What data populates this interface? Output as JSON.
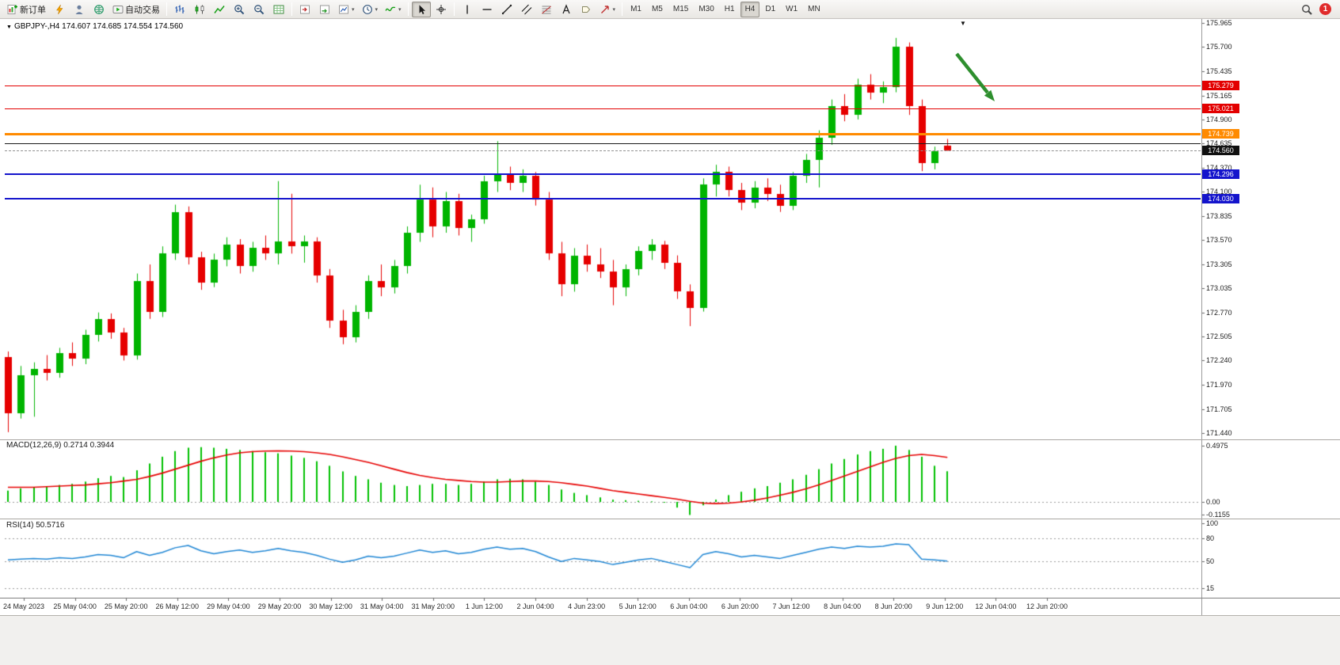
{
  "header": {
    "collapse_glyph": "▼",
    "title": "GBPJPY-,H4 174.607 174.685 174.554 174.560",
    "shift_marker": "▼"
  },
  "toolbar": {
    "items": [
      {
        "name": "new-order-button",
        "icon": "new-order-icon",
        "label": "新订单"
      },
      {
        "name": "market-watch-button",
        "icon": "lightning-icon"
      },
      {
        "name": "accounts-button",
        "icon": "person-icon"
      },
      {
        "name": "web-community-button",
        "icon": "globe-icon"
      },
      {
        "name": "autotrading-button",
        "icon": "autotrading-icon",
        "label": "自动交易"
      },
      {
        "sep": true
      },
      {
        "name": "bar-chart-mode-button",
        "icon": "ohlc-bars-icon"
      },
      {
        "name": "candle-chart-mode-button",
        "icon": "candles-icon"
      },
      {
        "name": "line-chart-mode-button",
        "icon": "line-chart-icon"
      },
      {
        "name": "zoom-in-button",
        "icon": "zoom-in-icon"
      },
      {
        "name": "zoom-out-button",
        "icon": "zoom-out-icon"
      },
      {
        "name": "tile-windows-button",
        "icon": "grid-icon"
      },
      {
        "sep": true
      },
      {
        "name": "chart-shift-button",
        "icon": "shift-icon"
      },
      {
        "name": "auto-scroll-button",
        "icon": "autoscroll-icon"
      },
      {
        "name": "new-chart-button",
        "icon": "new-chart-icon",
        "dropdown": true
      },
      {
        "name": "periods-button",
        "icon": "clock-icon",
        "dropdown": true
      },
      {
        "name": "indicators-button",
        "icon": "indicator-icon",
        "dropdown": true
      },
      {
        "sep": true
      },
      {
        "name": "cursor-button",
        "icon": "cursor-icon",
        "active": true
      },
      {
        "name": "crosshair-button",
        "icon": "crosshair-icon"
      },
      {
        "sep": true
      },
      {
        "name": "vertical-line-button",
        "icon": "vline-icon"
      },
      {
        "name": "horizontal-line-button",
        "icon": "hline-icon"
      },
      {
        "name": "trendline-button",
        "icon": "trendline-icon"
      },
      {
        "name": "channel-button",
        "icon": "channel-icon"
      },
      {
        "name": "fibonacci-button",
        "icon": "fibonacci-icon"
      },
      {
        "name": "text-button",
        "icon": "text-icon"
      },
      {
        "name": "label-button",
        "icon": "label-icon"
      },
      {
        "name": "shapes-button",
        "icon": "shapes-icon",
        "dropdown": true
      },
      {
        "sep": true
      }
    ],
    "timeframes": [
      "M1",
      "M5",
      "M15",
      "M30",
      "H1",
      "H4",
      "D1",
      "W1",
      "MN"
    ],
    "active_timeframe": "H4",
    "notification_count": "1"
  },
  "colors": {
    "bull": "#00b400",
    "bear": "#e60000",
    "macd_histogram": "#00c000",
    "macd_signal": "#e60000",
    "rsi_line": "#1f86d4",
    "arrow_green": "#2e8f2e",
    "badge_red": "#e02b2b"
  },
  "chart_data": {
    "type": "candlestick",
    "symbol": "GBPJPY-",
    "timeframe": "H4",
    "price_axis_ticks": [
      "175.965",
      "175.700",
      "175.435",
      "175.165",
      "174.900",
      "174.635",
      "174.370",
      "174.100",
      "173.835",
      "173.570",
      "173.305",
      "173.035",
      "172.770",
      "172.505",
      "172.240",
      "171.970",
      "171.705",
      "171.440"
    ],
    "x_labels": [
      "24 May 2023",
      "25 May 04:00",
      "25 May 20:00",
      "26 May 12:00",
      "29 May 04:00",
      "29 May 20:00",
      "30 May 12:00",
      "31 May 04:00",
      "31 May 20:00",
      "1 Jun 12:00",
      "2 Jun 04:00",
      "4 Jun 23:00",
      "5 Jun 12:00",
      "6 Jun 04:00",
      "6 Jun 20:00",
      "7 Jun 12:00",
      "8 Jun 04:00",
      "8 Jun 20:00",
      "9 Jun 12:00",
      "12 Jun 04:00",
      "12 Jun 20:00"
    ],
    "last_price": "174.560",
    "hlines": [
      {
        "price": 175.279,
        "color": "#e30000",
        "width": 1,
        "tag": "175.279"
      },
      {
        "price": 175.021,
        "color": "#e30000",
        "width": 1,
        "tag": "175.021"
      },
      {
        "price": 174.739,
        "color": "#ff8a00",
        "width": 3,
        "tag": "174.739"
      },
      {
        "price": 174.635,
        "color": "#1a1a1a",
        "width": 1,
        "tag": null
      },
      {
        "price": 174.56,
        "color": "#909090",
        "width": 1,
        "dashed": true,
        "tag": "174.560",
        "tag_bg": "#111111"
      },
      {
        "price": 174.296,
        "color": "#1414cc",
        "width": 2,
        "tag": "174.296"
      },
      {
        "price": 174.03,
        "color": "#1414cc",
        "width": 2,
        "tag": "174.030"
      }
    ],
    "candles_ohlc": [
      [
        172.28,
        172.34,
        171.45,
        171.66
      ],
      [
        171.66,
        172.18,
        171.6,
        172.08
      ],
      [
        172.08,
        172.22,
        171.62,
        172.15
      ],
      [
        172.15,
        172.3,
        172.02,
        172.1
      ],
      [
        172.1,
        172.38,
        172.05,
        172.32
      ],
      [
        172.32,
        172.44,
        172.18,
        172.26
      ],
      [
        172.26,
        172.58,
        172.2,
        172.52
      ],
      [
        172.52,
        172.77,
        172.45,
        172.7
      ],
      [
        172.7,
        172.76,
        172.48,
        172.55
      ],
      [
        172.55,
        172.6,
        172.24,
        172.3
      ],
      [
        172.3,
        173.2,
        172.25,
        173.12
      ],
      [
        173.12,
        173.3,
        172.7,
        172.78
      ],
      [
        172.78,
        173.5,
        172.72,
        173.42
      ],
      [
        173.42,
        173.96,
        173.35,
        173.88
      ],
      [
        173.88,
        173.94,
        173.3,
        173.38
      ],
      [
        173.38,
        173.44,
        173.02,
        173.1
      ],
      [
        173.1,
        173.42,
        173.05,
        173.35
      ],
      [
        173.35,
        173.6,
        173.28,
        173.52
      ],
      [
        173.52,
        173.58,
        173.2,
        173.28
      ],
      [
        173.28,
        173.55,
        173.22,
        173.48
      ],
      [
        173.48,
        173.62,
        173.35,
        173.42
      ],
      [
        173.42,
        174.22,
        173.3,
        173.55
      ],
      [
        173.55,
        174.08,
        173.42,
        173.5
      ],
      [
        173.5,
        173.62,
        173.32,
        173.55
      ],
      [
        173.55,
        173.6,
        173.1,
        173.18
      ],
      [
        173.18,
        173.25,
        172.6,
        172.68
      ],
      [
        172.68,
        172.8,
        172.42,
        172.5
      ],
      [
        172.5,
        172.85,
        172.44,
        172.78
      ],
      [
        172.78,
        173.18,
        172.7,
        173.12
      ],
      [
        173.12,
        173.3,
        172.95,
        173.05
      ],
      [
        173.05,
        173.35,
        172.98,
        173.28
      ],
      [
        173.28,
        173.72,
        173.2,
        173.65
      ],
      [
        173.65,
        174.18,
        173.55,
        174.02
      ],
      [
        174.02,
        174.15,
        173.6,
        173.72
      ],
      [
        173.72,
        174.1,
        173.65,
        174.0
      ],
      [
        174.0,
        174.08,
        173.62,
        173.7
      ],
      [
        173.7,
        173.85,
        173.55,
        173.8
      ],
      [
        173.8,
        174.28,
        173.75,
        174.22
      ],
      [
        174.22,
        174.66,
        174.1,
        174.3
      ],
      [
        174.3,
        174.38,
        174.12,
        174.2
      ],
      [
        174.2,
        174.35,
        174.1,
        174.28
      ],
      [
        174.28,
        174.32,
        173.95,
        174.02
      ],
      [
        174.02,
        174.1,
        173.35,
        173.42
      ],
      [
        173.42,
        173.55,
        172.95,
        173.08
      ],
      [
        173.08,
        173.48,
        173.0,
        173.4
      ],
      [
        173.4,
        173.52,
        173.22,
        173.3
      ],
      [
        173.3,
        173.48,
        173.15,
        173.22
      ],
      [
        173.22,
        173.35,
        172.85,
        173.05
      ],
      [
        173.05,
        173.3,
        172.95,
        173.25
      ],
      [
        173.25,
        173.5,
        173.18,
        173.45
      ],
      [
        173.45,
        173.58,
        173.35,
        173.52
      ],
      [
        173.52,
        173.56,
        173.25,
        173.32
      ],
      [
        173.32,
        173.4,
        172.92,
        173.0
      ],
      [
        173.0,
        173.08,
        172.62,
        172.82
      ],
      [
        172.82,
        174.25,
        172.78,
        174.18
      ],
      [
        174.18,
        174.4,
        174.05,
        174.32
      ],
      [
        174.32,
        174.38,
        174.05,
        174.12
      ],
      [
        174.12,
        174.2,
        173.9,
        173.98
      ],
      [
        173.98,
        174.22,
        173.92,
        174.15
      ],
      [
        174.15,
        174.25,
        174.0,
        174.08
      ],
      [
        174.08,
        174.18,
        173.88,
        173.95
      ],
      [
        173.95,
        174.32,
        173.9,
        174.28
      ],
      [
        174.28,
        174.52,
        174.2,
        174.45
      ],
      [
        174.45,
        174.78,
        174.15,
        174.7
      ],
      [
        174.7,
        175.12,
        174.62,
        175.05
      ],
      [
        175.05,
        175.18,
        174.88,
        174.95
      ],
      [
        174.95,
        175.35,
        174.9,
        175.28
      ],
      [
        175.28,
        175.4,
        175.12,
        175.2
      ],
      [
        175.2,
        175.32,
        175.08,
        175.26
      ],
      [
        175.26,
        175.8,
        175.2,
        175.7
      ],
      [
        175.7,
        175.75,
        174.95,
        175.05
      ],
      [
        175.05,
        175.12,
        174.33,
        174.42
      ],
      [
        174.42,
        174.6,
        174.35,
        174.55
      ],
      [
        174.607,
        174.685,
        174.554,
        174.56
      ]
    ],
    "macd": {
      "title": "MACD(12,26,9) 0.2714 0.3944",
      "axis": [
        "0.4975",
        "0.00",
        "-0.1155"
      ],
      "histogram": [
        0.1,
        0.12,
        0.13,
        0.14,
        0.15,
        0.16,
        0.18,
        0.21,
        0.23,
        0.22,
        0.28,
        0.34,
        0.4,
        0.45,
        0.48,
        0.485,
        0.48,
        0.47,
        0.46,
        0.45,
        0.44,
        0.43,
        0.41,
        0.39,
        0.36,
        0.32,
        0.27,
        0.23,
        0.2,
        0.17,
        0.15,
        0.14,
        0.15,
        0.16,
        0.16,
        0.15,
        0.16,
        0.18,
        0.2,
        0.205,
        0.2,
        0.18,
        0.15,
        0.11,
        0.08,
        0.06,
        0.04,
        0.02,
        0.015,
        0.01,
        0.005,
        0.0,
        -0.05,
        -0.1155,
        -0.03,
        0.02,
        0.06,
        0.09,
        0.12,
        0.14,
        0.17,
        0.2,
        0.24,
        0.29,
        0.34,
        0.38,
        0.42,
        0.45,
        0.47,
        0.4975,
        0.46,
        0.4,
        0.32,
        0.2714
      ],
      "signal": [
        0.13,
        0.13,
        0.13,
        0.135,
        0.14,
        0.145,
        0.15,
        0.16,
        0.17,
        0.185,
        0.2,
        0.225,
        0.255,
        0.29,
        0.325,
        0.36,
        0.39,
        0.415,
        0.435,
        0.445,
        0.45,
        0.452,
        0.45,
        0.445,
        0.435,
        0.42,
        0.4,
        0.375,
        0.35,
        0.32,
        0.29,
        0.26,
        0.235,
        0.215,
        0.2,
        0.19,
        0.18,
        0.175,
        0.175,
        0.18,
        0.185,
        0.185,
        0.18,
        0.17,
        0.155,
        0.14,
        0.12,
        0.1,
        0.085,
        0.07,
        0.055,
        0.04,
        0.025,
        0.005,
        -0.01,
        -0.015,
        -0.01,
        0.0,
        0.015,
        0.035,
        0.06,
        0.085,
        0.115,
        0.15,
        0.19,
        0.23,
        0.27,
        0.31,
        0.35,
        0.385,
        0.41,
        0.42,
        0.41,
        0.3944
      ]
    },
    "rsi": {
      "title": "RSI(14) 50.5716",
      "levels": [
        100,
        80,
        50,
        15
      ],
      "series": [
        52,
        53,
        54,
        53,
        55,
        54,
        56,
        59,
        58,
        55,
        63,
        58,
        62,
        68,
        71,
        64,
        60,
        63,
        65,
        62,
        64,
        67,
        64,
        62,
        58,
        53,
        49,
        52,
        57,
        55,
        57,
        61,
        65,
        62,
        64,
        60,
        62,
        66,
        69,
        66,
        67,
        63,
        56,
        50,
        54,
        52,
        50,
        46,
        49,
        52,
        54,
        50,
        46,
        42,
        59,
        63,
        60,
        56,
        58,
        56,
        54,
        58,
        62,
        66,
        69,
        67,
        70,
        69,
        70,
        73,
        72,
        53,
        52,
        50.57
      ]
    }
  }
}
